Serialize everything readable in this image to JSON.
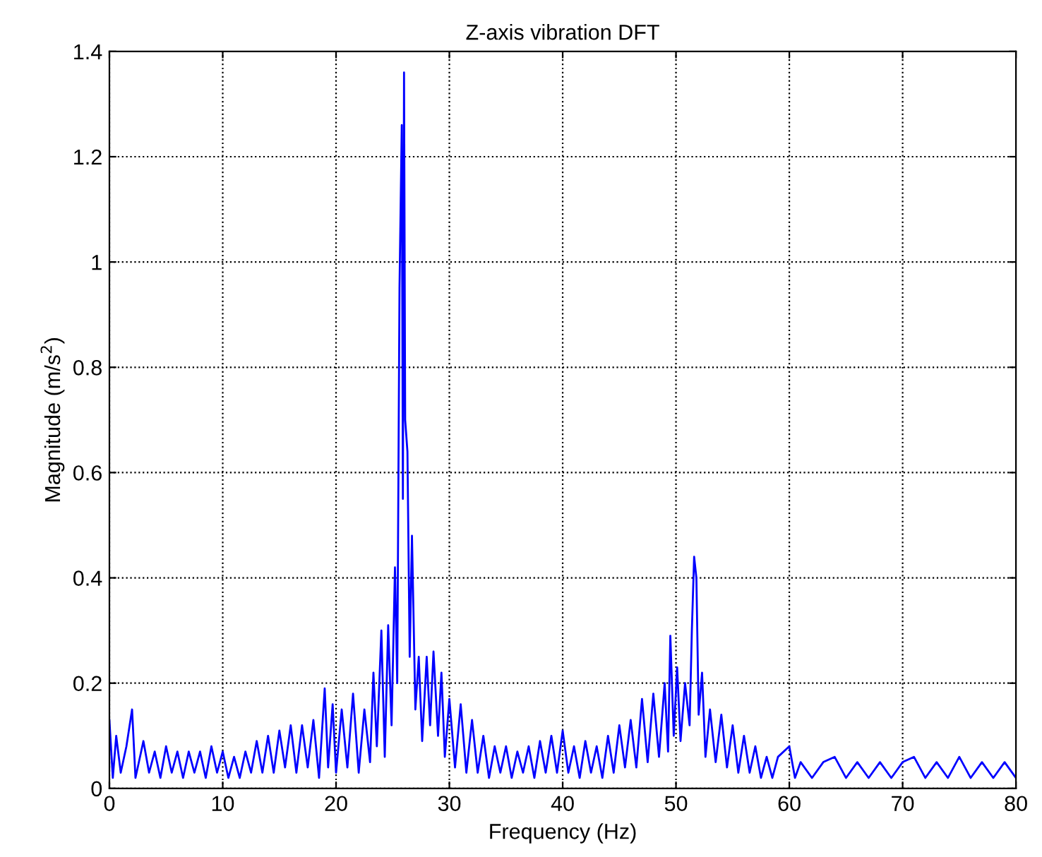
{
  "chart_data": {
    "type": "line",
    "title": "Z-axis vibration DFT",
    "xlabel": "Frequency (Hz)",
    "ylabel": "Magnitude (m/s$^{2}$)",
    "xlim": [
      0,
      80
    ],
    "xticks": [
      0,
      10,
      20,
      30,
      40,
      50,
      60,
      70,
      80
    ],
    "ylim": [
      0,
      1.4
    ],
    "yticks": [
      0,
      0.2,
      0.4,
      0.6,
      0.8,
      1,
      1.2,
      1.4
    ],
    "grid": true,
    "line_style": "solid",
    "series": [
      {
        "color": "#0000ff",
        "x": [
          0,
          0.3,
          0.6,
          1,
          1.5,
          2,
          2.3,
          3,
          3.5,
          4,
          4.5,
          5,
          5.5,
          6,
          6.5,
          7,
          7.5,
          8,
          8.5,
          9,
          9.5,
          10,
          10.5,
          11,
          11.5,
          12,
          12.5,
          13,
          13.5,
          14,
          14.5,
          15,
          15.5,
          16,
          16.5,
          17,
          17.5,
          18,
          18.5,
          19,
          19.3,
          19.7,
          20,
          20.5,
          21,
          21.5,
          22,
          22.5,
          23,
          23.3,
          23.6,
          24,
          24.3,
          24.6,
          24.9,
          25.2,
          25.4,
          25.6,
          25.8,
          25.9,
          26.0,
          26.1,
          26.3,
          26.5,
          26.7,
          27,
          27.3,
          27.6,
          28,
          28.3,
          28.6,
          29,
          29.3,
          29.6,
          30,
          30.5,
          31,
          31.5,
          32,
          32.5,
          33,
          33.5,
          34,
          34.5,
          35,
          35.5,
          36,
          36.5,
          37,
          37.5,
          38,
          38.5,
          39,
          39.5,
          40,
          40.5,
          41,
          41.5,
          42,
          42.5,
          43,
          43.5,
          44,
          44.5,
          45,
          45.5,
          46,
          46.5,
          47,
          47.5,
          48,
          48.5,
          49,
          49.3,
          49.5,
          49.8,
          50.1,
          50.4,
          50.8,
          51.2,
          51.4,
          51.6,
          51.8,
          52,
          52.3,
          52.6,
          53,
          53.5,
          54,
          54.5,
          55,
          55.5,
          56,
          56.5,
          57,
          57.5,
          58,
          58.5,
          59,
          60,
          60.5,
          61,
          62,
          63,
          64,
          65,
          66,
          67,
          68,
          69,
          70,
          71,
          72,
          73,
          74,
          75,
          76,
          77,
          78,
          79,
          80
        ],
        "values": [
          0.13,
          0.02,
          0.1,
          0.03,
          0.08,
          0.15,
          0.02,
          0.09,
          0.03,
          0.07,
          0.02,
          0.08,
          0.03,
          0.07,
          0.02,
          0.07,
          0.03,
          0.07,
          0.02,
          0.08,
          0.03,
          0.07,
          0.02,
          0.06,
          0.02,
          0.07,
          0.03,
          0.09,
          0.03,
          0.1,
          0.03,
          0.11,
          0.04,
          0.12,
          0.03,
          0.12,
          0.04,
          0.13,
          0.02,
          0.19,
          0.04,
          0.16,
          0.03,
          0.15,
          0.04,
          0.18,
          0.03,
          0.15,
          0.05,
          0.22,
          0.08,
          0.3,
          0.06,
          0.31,
          0.12,
          0.42,
          0.2,
          0.95,
          1.26,
          0.55,
          1.36,
          0.7,
          0.64,
          0.25,
          0.48,
          0.15,
          0.25,
          0.09,
          0.25,
          0.12,
          0.26,
          0.1,
          0.22,
          0.06,
          0.17,
          0.04,
          0.16,
          0.03,
          0.13,
          0.03,
          0.1,
          0.02,
          0.08,
          0.03,
          0.08,
          0.02,
          0.07,
          0.03,
          0.08,
          0.02,
          0.09,
          0.03,
          0.1,
          0.03,
          0.11,
          0.03,
          0.08,
          0.02,
          0.09,
          0.03,
          0.08,
          0.02,
          0.1,
          0.03,
          0.12,
          0.04,
          0.13,
          0.04,
          0.17,
          0.05,
          0.18,
          0.06,
          0.2,
          0.07,
          0.29,
          0.1,
          0.23,
          0.09,
          0.2,
          0.12,
          0.3,
          0.44,
          0.4,
          0.14,
          0.22,
          0.06,
          0.15,
          0.05,
          0.14,
          0.04,
          0.12,
          0.03,
          0.1,
          0.03,
          0.08,
          0.02,
          0.06,
          0.02,
          0.06,
          0.08,
          0.02,
          0.05,
          0.02,
          0.05,
          0.06,
          0.02,
          0.05,
          0.02,
          0.05,
          0.02,
          0.05,
          0.06,
          0.02,
          0.05,
          0.02,
          0.06,
          0.02,
          0.05,
          0.02,
          0.05,
          0.02
        ]
      }
    ]
  }
}
